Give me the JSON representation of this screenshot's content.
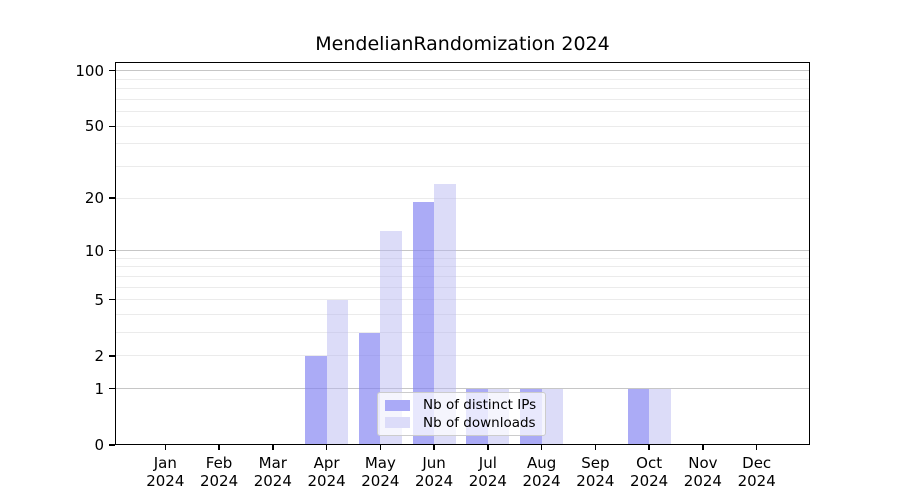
{
  "title": "MendelianRandomization 2024",
  "colors": {
    "bar_ips": "#aaaaf7",
    "bar_downloads": "#dcdcf9",
    "bar_ips_rgba": "rgba(128,128,242,0.66)",
    "bar_downloads_rgba": "rgba(180,180,240,0.47)",
    "major_gridline": "#c6c6c6",
    "minor_gridline": "#ebebeb",
    "axis": "#000000",
    "legend_border": "#cccccc"
  },
  "chart_data": {
    "type": "bar",
    "title": "MendelianRandomization 2024",
    "categories": [
      "Jan",
      "Feb",
      "Mar",
      "Apr",
      "May",
      "Jun",
      "Jul",
      "Aug",
      "Sep",
      "Oct",
      "Nov",
      "Dec"
    ],
    "year": "2024",
    "series": [
      {
        "name": "Nb of distinct IPs",
        "color": "rgba(128,128,242,0.66)",
        "solid": "#aaaaf7",
        "values": [
          0,
          0,
          0,
          2,
          3,
          19,
          1,
          1,
          0,
          1,
          0,
          0
        ]
      },
      {
        "name": "Nb of downloads",
        "color": "rgba(180,180,240,0.47)",
        "solid": "#dcdcf9",
        "values": [
          0,
          0,
          0,
          5,
          13,
          24,
          1,
          1,
          0,
          1,
          0,
          0
        ]
      }
    ],
    "yscale": "log1p",
    "y_ticks": [
      0,
      1,
      2,
      5,
      10,
      20,
      50,
      100
    ],
    "ylim": [
      0,
      112
    ],
    "xlabel": "",
    "ylabel": "",
    "grid": true,
    "legend_position": "lower center"
  }
}
